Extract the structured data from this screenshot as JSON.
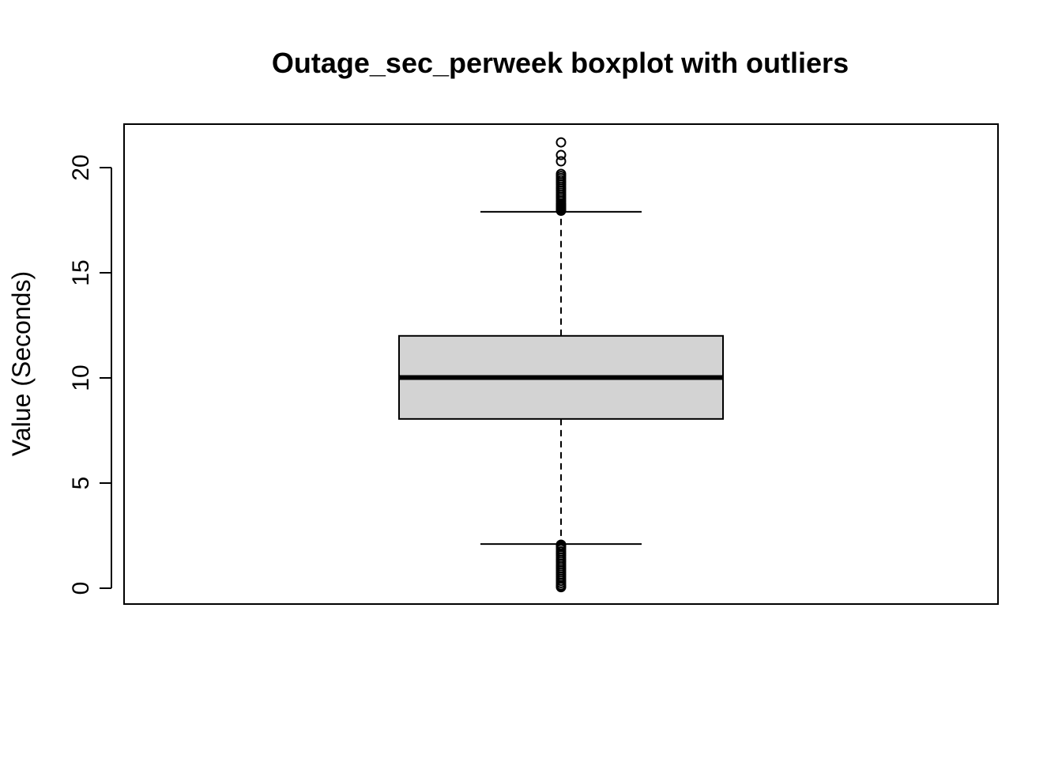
{
  "chart_data": {
    "type": "box",
    "title": "Outage_sec_perweek boxplot with outliers",
    "xlabel": "",
    "ylabel": "Value (Seconds)",
    "ylim": [
      -0.8,
      22.1
    ],
    "yticks": [
      0,
      5,
      10,
      15,
      20
    ],
    "ytick_labels": [
      "0",
      "5",
      "10",
      "15",
      "20"
    ],
    "grid": false,
    "colors": {
      "box_fill": "#d3d3d3",
      "stroke": "#000000",
      "background": "#ffffff"
    },
    "box": {
      "lower_whisker": 2.1,
      "q1": 8.05,
      "median": 10.02,
      "q3": 12.0,
      "upper_whisker": 17.9
    },
    "outliers_high": [
      17.95,
      18.0,
      18.05,
      18.1,
      18.15,
      18.2,
      18.25,
      18.3,
      18.4,
      18.5,
      18.6,
      18.7,
      18.8,
      18.9,
      19.0,
      19.1,
      19.2,
      19.3,
      19.4,
      19.5,
      19.6,
      19.7,
      20.3,
      20.6,
      21.2
    ],
    "outliers_low": [
      0.05,
      0.1,
      0.15,
      0.25,
      0.35,
      0.45,
      0.55,
      0.65,
      0.75,
      0.85,
      0.95,
      1.05,
      1.15,
      1.25,
      1.35,
      1.45,
      1.55,
      1.65,
      1.75,
      1.85,
      1.95,
      2.02,
      2.07
    ]
  }
}
